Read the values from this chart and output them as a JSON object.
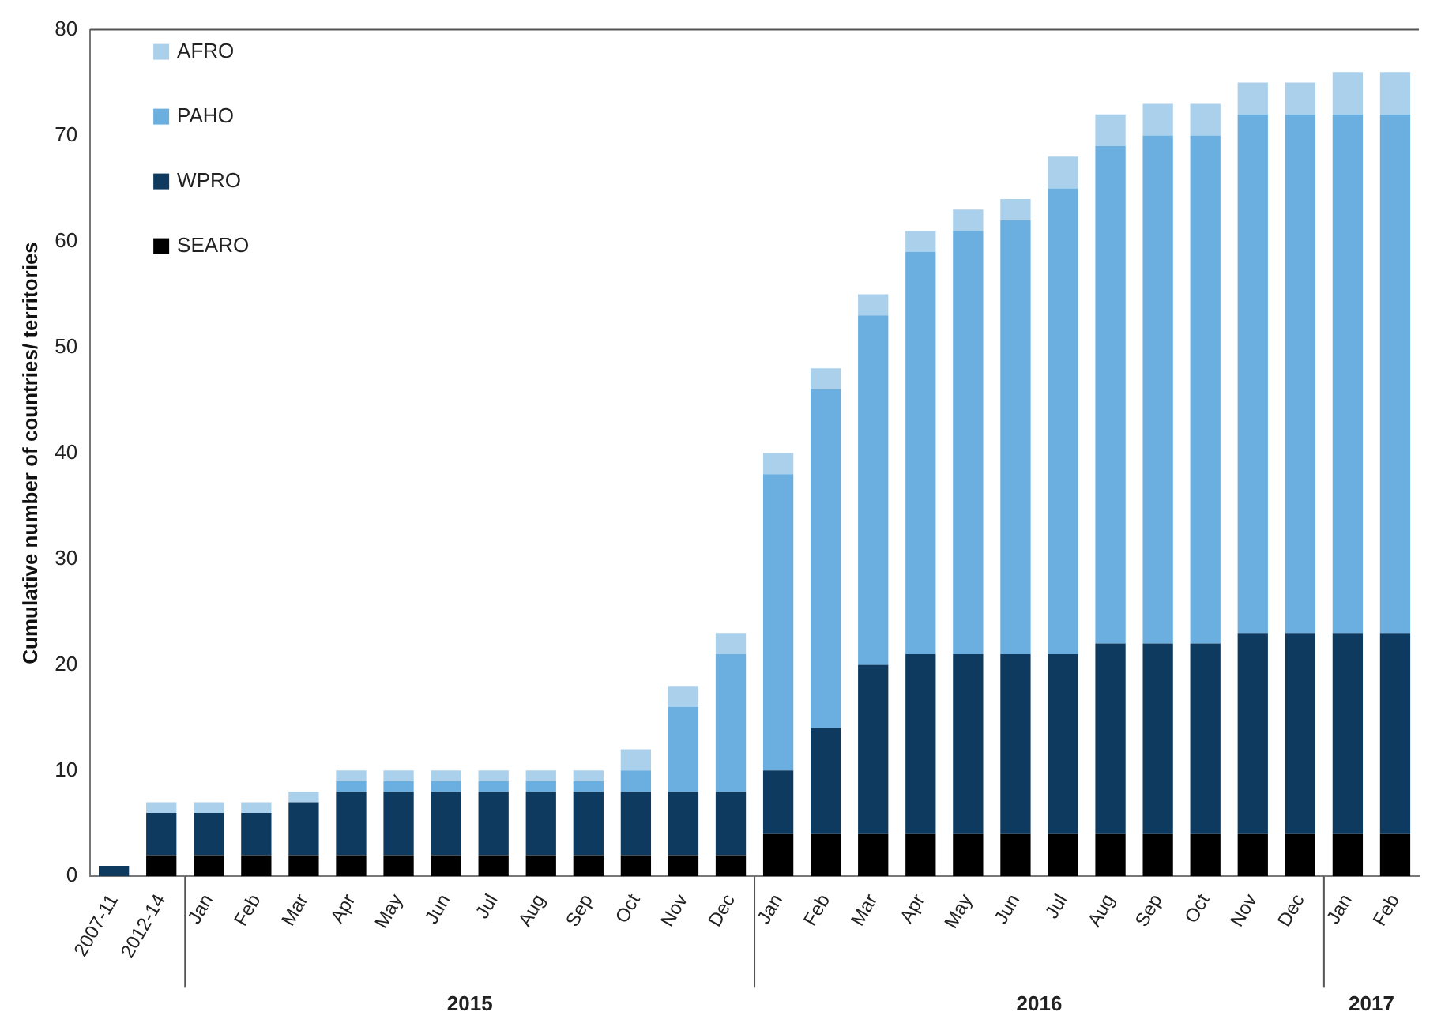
{
  "chart_data": {
    "type": "bar",
    "stacked": true,
    "ylabel": "Cumulative number of countries/ territories",
    "categories": [
      "2007-11",
      "2012-14",
      "Jan",
      "Feb",
      "Mar",
      "Apr",
      "May",
      "Jun",
      "Jul",
      "Aug",
      "Sep",
      "Oct",
      "Nov",
      "Dec",
      "Jan",
      "Feb",
      "Mar",
      "Apr",
      "May",
      "Jun",
      "Jul",
      "Aug",
      "Sep",
      "Oct",
      "Nov",
      "Dec",
      "Jan",
      "Feb"
    ],
    "series": [
      {
        "name": "SEARO",
        "color": "#000000",
        "values": [
          0,
          2,
          2,
          2,
          2,
          2,
          2,
          2,
          2,
          2,
          2,
          2,
          2,
          2,
          4,
          4,
          4,
          4,
          4,
          4,
          4,
          4,
          4,
          4,
          4,
          4,
          4,
          4
        ]
      },
      {
        "name": "WPRO",
        "color": "#0e3a5f",
        "values": [
          1,
          4,
          4,
          4,
          5,
          6,
          6,
          6,
          6,
          6,
          6,
          6,
          6,
          6,
          6,
          10,
          16,
          17,
          17,
          17,
          17,
          18,
          18,
          18,
          19,
          19,
          19,
          19
        ]
      },
      {
        "name": "PAHO",
        "color": "#6aafdf",
        "values": [
          0,
          0,
          0,
          0,
          0,
          1,
          1,
          1,
          1,
          1,
          1,
          2,
          8,
          13,
          28,
          32,
          33,
          38,
          40,
          41,
          44,
          47,
          48,
          48,
          49,
          49,
          49,
          49
        ]
      },
      {
        "name": "AFRO",
        "color": "#abd0ec",
        "values": [
          0,
          1,
          1,
          1,
          1,
          1,
          1,
          1,
          1,
          1,
          1,
          2,
          2,
          2,
          2,
          2,
          2,
          2,
          2,
          2,
          3,
          3,
          3,
          3,
          3,
          3,
          4,
          4
        ]
      }
    ],
    "ylim": [
      0,
      80
    ],
    "yticks": [
      0,
      10,
      20,
      30,
      40,
      50,
      60,
      70,
      80
    ],
    "grid": false,
    "legend": "top left",
    "annotations": [
      "2015",
      "2016",
      "2017"
    ]
  }
}
